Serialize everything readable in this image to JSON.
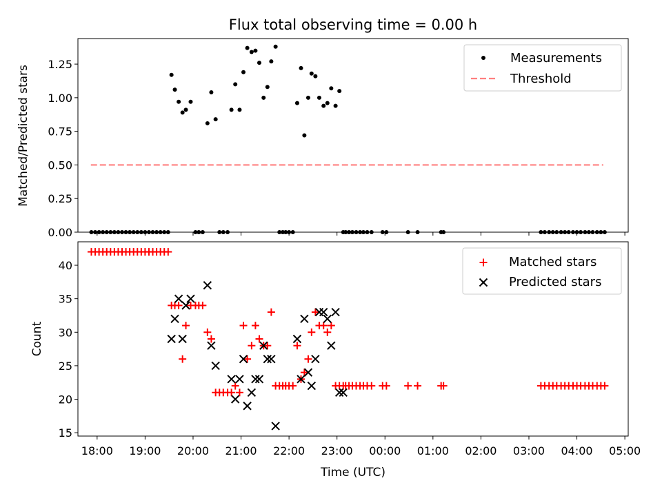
{
  "title": "Flux total observing time = 0.00 h",
  "colors": {
    "measurement": "#000000",
    "threshold": "#ff8080",
    "matched": "#ff0000",
    "predicted": "#000000"
  },
  "chart_data": [
    {
      "type": "scatter",
      "ylabel": "Matched/Predicted stars",
      "xlim": [
        17.6,
        29.07
      ],
      "ylim": [
        0,
        1.44
      ],
      "yticks": [
        0,
        0.25,
        0.5,
        0.75,
        1.0,
        1.25
      ],
      "ytick_labels": [
        "0.00",
        "0.25",
        "0.50",
        "0.75",
        "1.00",
        "1.25"
      ],
      "legend": {
        "position": "top-right",
        "entries": [
          "Measurements",
          "Threshold"
        ]
      },
      "threshold": {
        "name": "Threshold",
        "y": 0.5,
        "x": [
          17.87,
          28.55
        ]
      },
      "series": [
        {
          "name": "Measurements",
          "x": [
            17.88,
            17.96,
            18.04,
            18.12,
            18.2,
            18.28,
            18.36,
            18.44,
            18.52,
            18.6,
            18.68,
            18.76,
            18.84,
            18.92,
            19.0,
            19.08,
            19.16,
            19.24,
            19.32,
            19.4,
            19.48,
            19.55,
            19.62,
            19.7,
            19.78,
            19.85,
            19.95,
            20.05,
            20.12,
            20.2,
            20.3,
            20.38,
            20.47,
            20.55,
            20.63,
            20.72,
            20.8,
            20.88,
            20.97,
            21.05,
            21.13,
            21.22,
            21.3,
            21.38,
            21.47,
            21.55,
            21.63,
            21.72,
            21.8,
            21.87,
            21.93,
            22.0,
            22.08,
            22.17,
            22.25,
            22.32,
            22.4,
            22.47,
            22.55,
            22.63,
            22.72,
            22.8,
            22.88,
            22.97,
            23.05,
            23.13,
            23.18,
            23.25,
            23.32,
            23.4,
            23.48,
            23.55,
            23.63,
            23.72,
            23.95,
            24.03,
            24.48,
            24.68,
            25.17,
            25.22,
            27.25,
            27.33,
            27.42,
            27.5,
            27.58,
            27.67,
            27.75,
            27.83,
            27.92,
            28.0,
            28.08,
            28.17,
            28.25,
            28.33,
            28.42,
            28.5,
            28.58
          ],
          "y": [
            0,
            0,
            0,
            0,
            0,
            0,
            0,
            0,
            0,
            0,
            0,
            0,
            0,
            0,
            0,
            0,
            0,
            0,
            0,
            0,
            0,
            1.17,
            1.06,
            0.97,
            0.89,
            0.91,
            0.97,
            0,
            0,
            0,
            0.81,
            1.04,
            0.84,
            0,
            0,
            0,
            0.91,
            1.1,
            0.91,
            1.19,
            1.37,
            1.34,
            1.35,
            1.26,
            1.0,
            1.08,
            1.27,
            1.38,
            0,
            0,
            0,
            0,
            0,
            0.96,
            1.22,
            0.72,
            1.0,
            1.18,
            1.16,
            1.0,
            0.94,
            0.96,
            1.07,
            0.94,
            1.05,
            0,
            0,
            0,
            0,
            0,
            0,
            0,
            0,
            0,
            0,
            0,
            0,
            0,
            0,
            0,
            0,
            0,
            0,
            0,
            0,
            0,
            0,
            0,
            0,
            0,
            0,
            0,
            0,
            0,
            0,
            0,
            0
          ]
        }
      ]
    },
    {
      "type": "scatter",
      "xlabel": "Time (UTC)",
      "ylabel": "Count",
      "xlim": [
        17.6,
        29.07
      ],
      "ylim": [
        14.5,
        43.5
      ],
      "xticks": [
        18,
        19,
        20,
        21,
        22,
        23,
        24,
        25,
        26,
        27,
        28,
        29
      ],
      "xtick_labels": [
        "18:00",
        "19:00",
        "20:00",
        "21:00",
        "22:00",
        "23:00",
        "00:00",
        "01:00",
        "02:00",
        "03:00",
        "04:00",
        "05:00"
      ],
      "yticks": [
        15,
        20,
        25,
        30,
        35,
        40
      ],
      "ytick_labels": [
        "15",
        "20",
        "25",
        "30",
        "35",
        "40"
      ],
      "legend": {
        "position": "top-right",
        "entries": [
          "Matched stars",
          "Predicted stars"
        ]
      },
      "series": [
        {
          "name": "Matched stars",
          "x": [
            17.88,
            17.96,
            18.04,
            18.12,
            18.2,
            18.28,
            18.36,
            18.44,
            18.52,
            18.6,
            18.68,
            18.76,
            18.84,
            18.92,
            19.0,
            19.08,
            19.16,
            19.24,
            19.32,
            19.4,
            19.48,
            19.55,
            19.62,
            19.7,
            19.78,
            19.85,
            19.95,
            20.05,
            20.12,
            20.2,
            20.3,
            20.38,
            20.47,
            20.55,
            20.63,
            20.72,
            20.8,
            20.88,
            20.97,
            21.05,
            21.13,
            21.22,
            21.3,
            21.38,
            21.47,
            21.55,
            21.63,
            21.72,
            21.8,
            21.87,
            21.93,
            22.0,
            22.08,
            22.17,
            22.25,
            22.32,
            22.4,
            22.47,
            22.55,
            22.63,
            22.72,
            22.8,
            22.88,
            22.97,
            23.05,
            23.13,
            23.18,
            23.25,
            23.32,
            23.4,
            23.48,
            23.55,
            23.63,
            23.72,
            23.95,
            24.03,
            24.48,
            24.68,
            25.17,
            25.22,
            27.25,
            27.33,
            27.42,
            27.5,
            27.58,
            27.67,
            27.75,
            27.83,
            27.92,
            28.0,
            28.08,
            28.17,
            28.25,
            28.33,
            28.42,
            28.5,
            28.58
          ],
          "y": [
            42,
            42,
            42,
            42,
            42,
            42,
            42,
            42,
            42,
            42,
            42,
            42,
            42,
            42,
            42,
            42,
            42,
            42,
            42,
            42,
            42,
            34,
            34,
            34,
            26,
            31,
            34,
            34,
            34,
            34,
            30,
            29,
            21,
            21,
            21,
            21,
            21,
            22,
            21,
            31,
            26,
            28,
            31,
            29,
            28,
            28,
            33,
            22,
            22,
            22,
            22,
            22,
            22,
            28,
            23,
            24,
            26,
            30,
            33,
            31,
            31,
            30,
            31,
            22,
            22,
            22,
            22,
            22,
            22,
            22,
            22,
            22,
            22,
            22,
            22,
            22,
            22,
            22,
            22,
            22,
            22,
            22,
            22,
            22,
            22,
            22,
            22,
            22,
            22,
            22,
            22,
            22,
            22,
            22,
            22,
            22,
            22
          ]
        },
        {
          "name": "Predicted stars",
          "x": [
            19.55,
            19.62,
            19.7,
            19.78,
            19.85,
            19.95,
            20.3,
            20.38,
            20.47,
            20.8,
            20.88,
            20.97,
            21.05,
            21.13,
            21.22,
            21.3,
            21.38,
            21.47,
            21.55,
            21.63,
            21.72,
            22.17,
            22.25,
            22.32,
            22.4,
            22.47,
            22.55,
            22.63,
            22.72,
            22.8,
            22.88,
            22.97,
            23.05,
            23.13
          ],
          "y": [
            29,
            32,
            35,
            29,
            34,
            35,
            37,
            28,
            25,
            23,
            20,
            23,
            26,
            19,
            21,
            23,
            23,
            28,
            26,
            26,
            16,
            29,
            23,
            32,
            24,
            22,
            26,
            33,
            33,
            32,
            28,
            33,
            21,
            21
          ]
        }
      ]
    }
  ]
}
